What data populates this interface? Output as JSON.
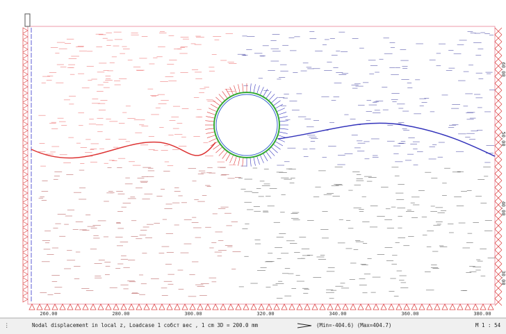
{
  "plot": {
    "bottom_labels": [
      "260.00",
      "280.00",
      "300.00",
      "320.00",
      "340.00",
      "360.00",
      "380.00"
    ],
    "right_labels": [
      "60.00",
      "50.00",
      "40.00",
      "30.00"
    ]
  },
  "status_bar": {
    "caption": "Nodal displacement in local z, Loadcase 1 собст вес   , 1 cm 3D = 200.0 mm",
    "range": "(Min=-404.6) (Max=404.7)",
    "scale": "M 1 : 54"
  }
}
